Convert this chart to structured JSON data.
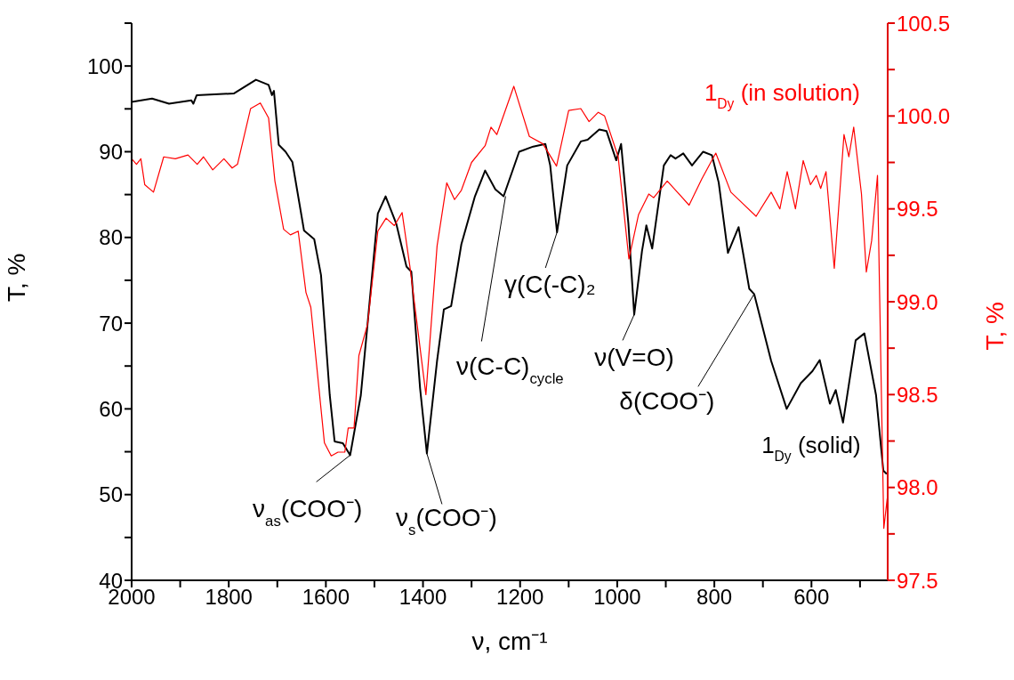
{
  "chart_data": {
    "type": "line",
    "xlabel": "ν, cm⁻¹",
    "ylabel": "T, %",
    "y2label": "T, %",
    "xlim": [
      2000,
      443
    ],
    "xticks": [
      2000,
      {
        "value": 1900,
        "label": null
      },
      1800,
      {
        "value": 1700,
        "label": null
      },
      1600,
      {
        "value": 1500,
        "label": null
      },
      1400,
      {
        "value": 1300,
        "label": null
      },
      1200,
      {
        "value": 1100,
        "label": null
      },
      1000,
      {
        "value": 900,
        "label": null
      },
      800,
      {
        "value": 700,
        "label": null
      },
      600,
      {
        "value": 500,
        "label": null
      }
    ],
    "ylim": [
      40,
      105
    ],
    "yticks": [
      40,
      {
        "value": 45,
        "label": null
      },
      50,
      {
        "value": 55,
        "label": null
      },
      60,
      {
        "value": 65,
        "label": null
      },
      70,
      {
        "value": 75,
        "label": null
      },
      80,
      {
        "value": 85,
        "label": null
      },
      90,
      {
        "value": 95,
        "label": null
      },
      100,
      {
        "value": 105,
        "label": null
      }
    ],
    "y2lim": [
      97.5,
      100.5
    ],
    "y2ticks": [
      97.5,
      {
        "value": 97.75,
        "label": null
      },
      {
        "value": 98,
        "label": "98.0"
      },
      {
        "value": 98.25,
        "label": null
      },
      98.5,
      {
        "value": 98.75,
        "label": null
      },
      {
        "value": 99,
        "label": "99.0"
      },
      {
        "value": 99.25,
        "label": null
      },
      99.5,
      {
        "value": 99.75,
        "label": null
      },
      {
        "value": 100,
        "label": "100.0"
      },
      {
        "value": 100.25,
        "label": null
      },
      100.5
    ],
    "grid": false,
    "legend": false,
    "marker": "none",
    "line_style": "solid",
    "annotations": [
      {
        "text": "ν$_{as}$(COO⁻)",
        "x": 1550,
        "y": 54.6
      },
      {
        "text": "ν$_{s}$(COO⁻)",
        "x": 1392,
        "y": 54.8
      },
      {
        "text": "ν(C-C)$_{cycle}$",
        "x": 1230,
        "y": 84.8
      },
      {
        "text": "γ(C(-C)₂",
        "x": 1124,
        "y": 80.6
      },
      {
        "text": "ν(V=O)",
        "x": 965,
        "y": 71.0
      },
      {
        "text": "δ(COO⁻)",
        "x": 718,
        "y": 73.4
      }
    ],
    "series": [
      {
        "name": "1$_{Dy}$ (solid)",
        "color": "#000000",
        "x": [
          2000,
          1958,
          1923,
          1877,
          1873,
          1866,
          1789,
          1744,
          1718,
          1711,
          1707,
          1697,
          1683,
          1669,
          1645,
          1624,
          1610,
          1592,
          1582,
          1565,
          1550,
          1528,
          1514,
          1493,
          1477,
          1455,
          1434,
          1424,
          1406,
          1392,
          1371,
          1357,
          1342,
          1321,
          1293,
          1272,
          1251,
          1234,
          1202,
          1173,
          1148,
          1138,
          1124,
          1103,
          1075,
          1061,
          1037,
          1022,
          1002,
          992,
          977,
          965,
          949,
          940,
          928,
          904,
          890,
          880,
          864,
          846,
          823,
          805,
          791,
          772,
          750,
          728,
          718,
          683,
          651,
          622,
          598,
          583,
          562,
          550,
          535,
          509,
          491,
          467,
          452,
          445
        ],
        "values": [
          95.8,
          96.2,
          95.6,
          96.0,
          95.6,
          96.6,
          96.8,
          98.4,
          97.8,
          96.6,
          97.1,
          90.8,
          90.0,
          88.8,
          80.8,
          79.8,
          75.6,
          61.6,
          56.2,
          56.0,
          54.6,
          61.6,
          70.0,
          82.8,
          84.8,
          81.6,
          76.6,
          76.0,
          62.4,
          54.8,
          65.6,
          71.6,
          72.0,
          79.2,
          84.8,
          87.8,
          85.6,
          84.8,
          90.0,
          90.6,
          90.9,
          88.4,
          80.6,
          88.4,
          91.2,
          91.4,
          92.6,
          92.4,
          89.0,
          90.9,
          81.6,
          71.0,
          78.4,
          81.4,
          78.7,
          88.4,
          89.6,
          89.2,
          89.8,
          88.4,
          90.0,
          89.6,
          86.4,
          78.2,
          81.2,
          74.0,
          73.4,
          65.6,
          60.0,
          63.0,
          64.4,
          65.7,
          60.6,
          62.2,
          58.4,
          68.0,
          68.8,
          61.6,
          52.8,
          52.4
        ]
      },
      {
        "name": "1$_{Dy}$ (in solution)",
        "color": "#ff0000",
        "axis": "y2",
        "x": [
          2000,
          1990,
          1981,
          1973,
          1955,
          1934,
          1910,
          1884,
          1865,
          1852,
          1833,
          1810,
          1793,
          1782,
          1755,
          1735,
          1718,
          1705,
          1687,
          1673,
          1657,
          1641,
          1631,
          1603,
          1589,
          1575,
          1561,
          1554,
          1542,
          1532,
          1514,
          1493,
          1476,
          1459,
          1443,
          1427,
          1394,
          1371,
          1351,
          1335,
          1321,
          1300,
          1272,
          1260,
          1248,
          1213,
          1181,
          1153,
          1125,
          1100,
          1075,
          1058,
          1039,
          1026,
          998,
          976,
          956,
          935,
          925,
          897,
          852,
          826,
          797,
          766,
          742,
          714,
          683,
          665,
          650,
          633,
          617,
          602,
          590,
          581,
          570,
          553,
          533,
          523,
          513,
          497,
          487,
          476,
          464,
          451,
          444
        ],
        "values": [
          99.77,
          99.74,
          99.77,
          99.63,
          99.59,
          99.78,
          99.77,
          99.79,
          99.74,
          99.78,
          99.71,
          99.77,
          99.72,
          99.74,
          100.04,
          100.07,
          99.99,
          99.65,
          99.39,
          99.36,
          99.38,
          99.05,
          98.97,
          98.24,
          98.17,
          98.19,
          98.19,
          98.32,
          98.32,
          98.71,
          98.88,
          99.38,
          99.45,
          99.41,
          99.48,
          99.19,
          98.5,
          99.3,
          99.64,
          99.55,
          99.6,
          99.75,
          99.84,
          99.94,
          99.9,
          100.16,
          99.89,
          99.85,
          99.73,
          100.03,
          100.04,
          99.97,
          100.02,
          100.0,
          99.78,
          99.23,
          99.47,
          99.58,
          99.56,
          99.65,
          99.52,
          99.66,
          99.8,
          99.59,
          99.53,
          99.46,
          99.59,
          99.5,
          99.7,
          99.5,
          99.76,
          99.63,
          99.68,
          99.61,
          99.7,
          99.18,
          99.9,
          99.78,
          99.94,
          99.58,
          99.16,
          99.33,
          99.68,
          97.78,
          97.94
        ]
      }
    ]
  }
}
